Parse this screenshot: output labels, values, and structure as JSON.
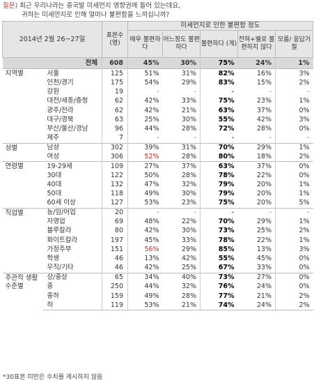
{
  "question": {
    "prefix": "질문)",
    "line1": "최근 우리나라는 중국발 미세먼지 영향권에 들어 있는데요,",
    "line2": "귀하는 미세먼지로 인해 얼마나 불편함을 느끼십니까?"
  },
  "header": {
    "date": "2014년 2월 26~27일",
    "sample": "표본수 (명)",
    "group": "미세먼지로 인한 불편함 정도",
    "cols": [
      "매우 불편하다",
      "어느정도 불편하다",
      "불편하다 (계)",
      "전혀+별로 불편하지 않다",
      "모름/ 응답거절"
    ]
  },
  "total": {
    "label": "전체",
    "n": "608",
    "v": [
      "45%",
      "30%",
      "75%",
      "24%",
      "1%"
    ]
  },
  "groups": [
    {
      "name": "지역별",
      "rows": [
        {
          "label": "서울",
          "n": "125",
          "v": [
            "51%",
            "31%",
            "82%",
            "16%",
            "3%"
          ]
        },
        {
          "label": "인천/경기",
          "n": "175",
          "v": [
            "54%",
            "29%",
            "83%",
            "15%",
            "2%"
          ]
        },
        {
          "label": "강원",
          "n": "19",
          "v": [
            "-",
            "-",
            "-",
            "-",
            "-"
          ]
        },
        {
          "label": "대전/세종/충청",
          "n": "62",
          "v": [
            "42%",
            "33%",
            "75%",
            "23%",
            "1%"
          ]
        },
        {
          "label": "광주/전라",
          "n": "62",
          "v": [
            "42%",
            "21%",
            "63%",
            "37%",
            "0%"
          ]
        },
        {
          "label": "대구/경북",
          "n": "63",
          "v": [
            "25%",
            "30%",
            "55%",
            "42%",
            "3%"
          ]
        },
        {
          "label": "부산/울산/경남",
          "n": "96",
          "v": [
            "44%",
            "28%",
            "72%",
            "28%",
            "0%"
          ]
        },
        {
          "label": "제주",
          "n": "7",
          "v": [
            "-",
            "-",
            "-",
            "-",
            "-"
          ]
        }
      ]
    },
    {
      "name": "성별",
      "rows": [
        {
          "label": "남성",
          "n": "302",
          "v": [
            "39%",
            "31%",
            "70%",
            "29%",
            "1%"
          ]
        },
        {
          "label": "여성",
          "n": "306",
          "v": [
            "52%",
            "28%",
            "80%",
            "18%",
            "2%"
          ]
        }
      ]
    },
    {
      "name": "연령별",
      "rows": [
        {
          "label": "19-29세",
          "n": "109",
          "v": [
            "27%",
            "37%",
            "63%",
            "37%",
            "0%"
          ]
        },
        {
          "label": "30대",
          "n": "122",
          "v": [
            "50%",
            "28%",
            "78%",
            "22%",
            "0%"
          ]
        },
        {
          "label": "40대",
          "n": "132",
          "v": [
            "47%",
            "32%",
            "79%",
            "20%",
            "1%"
          ]
        },
        {
          "label": "50대",
          "n": "118",
          "v": [
            "49%",
            "30%",
            "79%",
            "20%",
            "1%"
          ]
        },
        {
          "label": "60세 이상",
          "n": "127",
          "v": [
            "53%",
            "23%",
            "75%",
            "20%",
            "5%"
          ]
        }
      ]
    },
    {
      "name": "직업별",
      "rows": [
        {
          "label": "농/임/어업",
          "n": "20",
          "v": [
            "-",
            "-",
            "-",
            "-",
            "-"
          ]
        },
        {
          "label": "자영업",
          "n": "69",
          "v": [
            "48%",
            "22%",
            "70%",
            "29%",
            "1%"
          ]
        },
        {
          "label": "블루칼라",
          "n": "80",
          "v": [
            "42%",
            "30%",
            "73%",
            "25%",
            "2%"
          ]
        },
        {
          "label": "화이트칼라",
          "n": "197",
          "v": [
            "45%",
            "33%",
            "78%",
            "22%",
            "1%"
          ]
        },
        {
          "label": "가정주부",
          "n": "151",
          "v": [
            "56%",
            "29%",
            "85%",
            "13%",
            "3%"
          ]
        },
        {
          "label": "학생",
          "n": "46",
          "v": [
            "13%",
            "42%",
            "55%",
            "45%",
            "0%"
          ]
        },
        {
          "label": "무직/기타",
          "n": "46",
          "v": [
            "42%",
            "25%",
            "67%",
            "33%",
            "0%"
          ]
        }
      ]
    },
    {
      "name": "주관적 생활수준별",
      "rows": [
        {
          "label": "상/중상",
          "n": "65",
          "v": [
            "34%",
            "40%",
            "73%",
            "27%",
            "0%"
          ]
        },
        {
          "label": "중",
          "n": "250",
          "v": [
            "44%",
            "32%",
            "76%",
            "24%",
            "0%"
          ]
        },
        {
          "label": "중하",
          "n": "159",
          "v": [
            "49%",
            "28%",
            "77%",
            "21%",
            "2%"
          ]
        },
        {
          "label": "하",
          "n": "119",
          "v": [
            "53%",
            "21%",
            "74%",
            "24%",
            "2%"
          ]
        }
      ]
    }
  ],
  "footnote": "*30표본 미만은 수치를 게시하지 않음",
  "colors": {
    "highlight_red": "#c9302c",
    "header_bg": "#e6e6e6",
    "total_bg": "#d9d9d9"
  }
}
